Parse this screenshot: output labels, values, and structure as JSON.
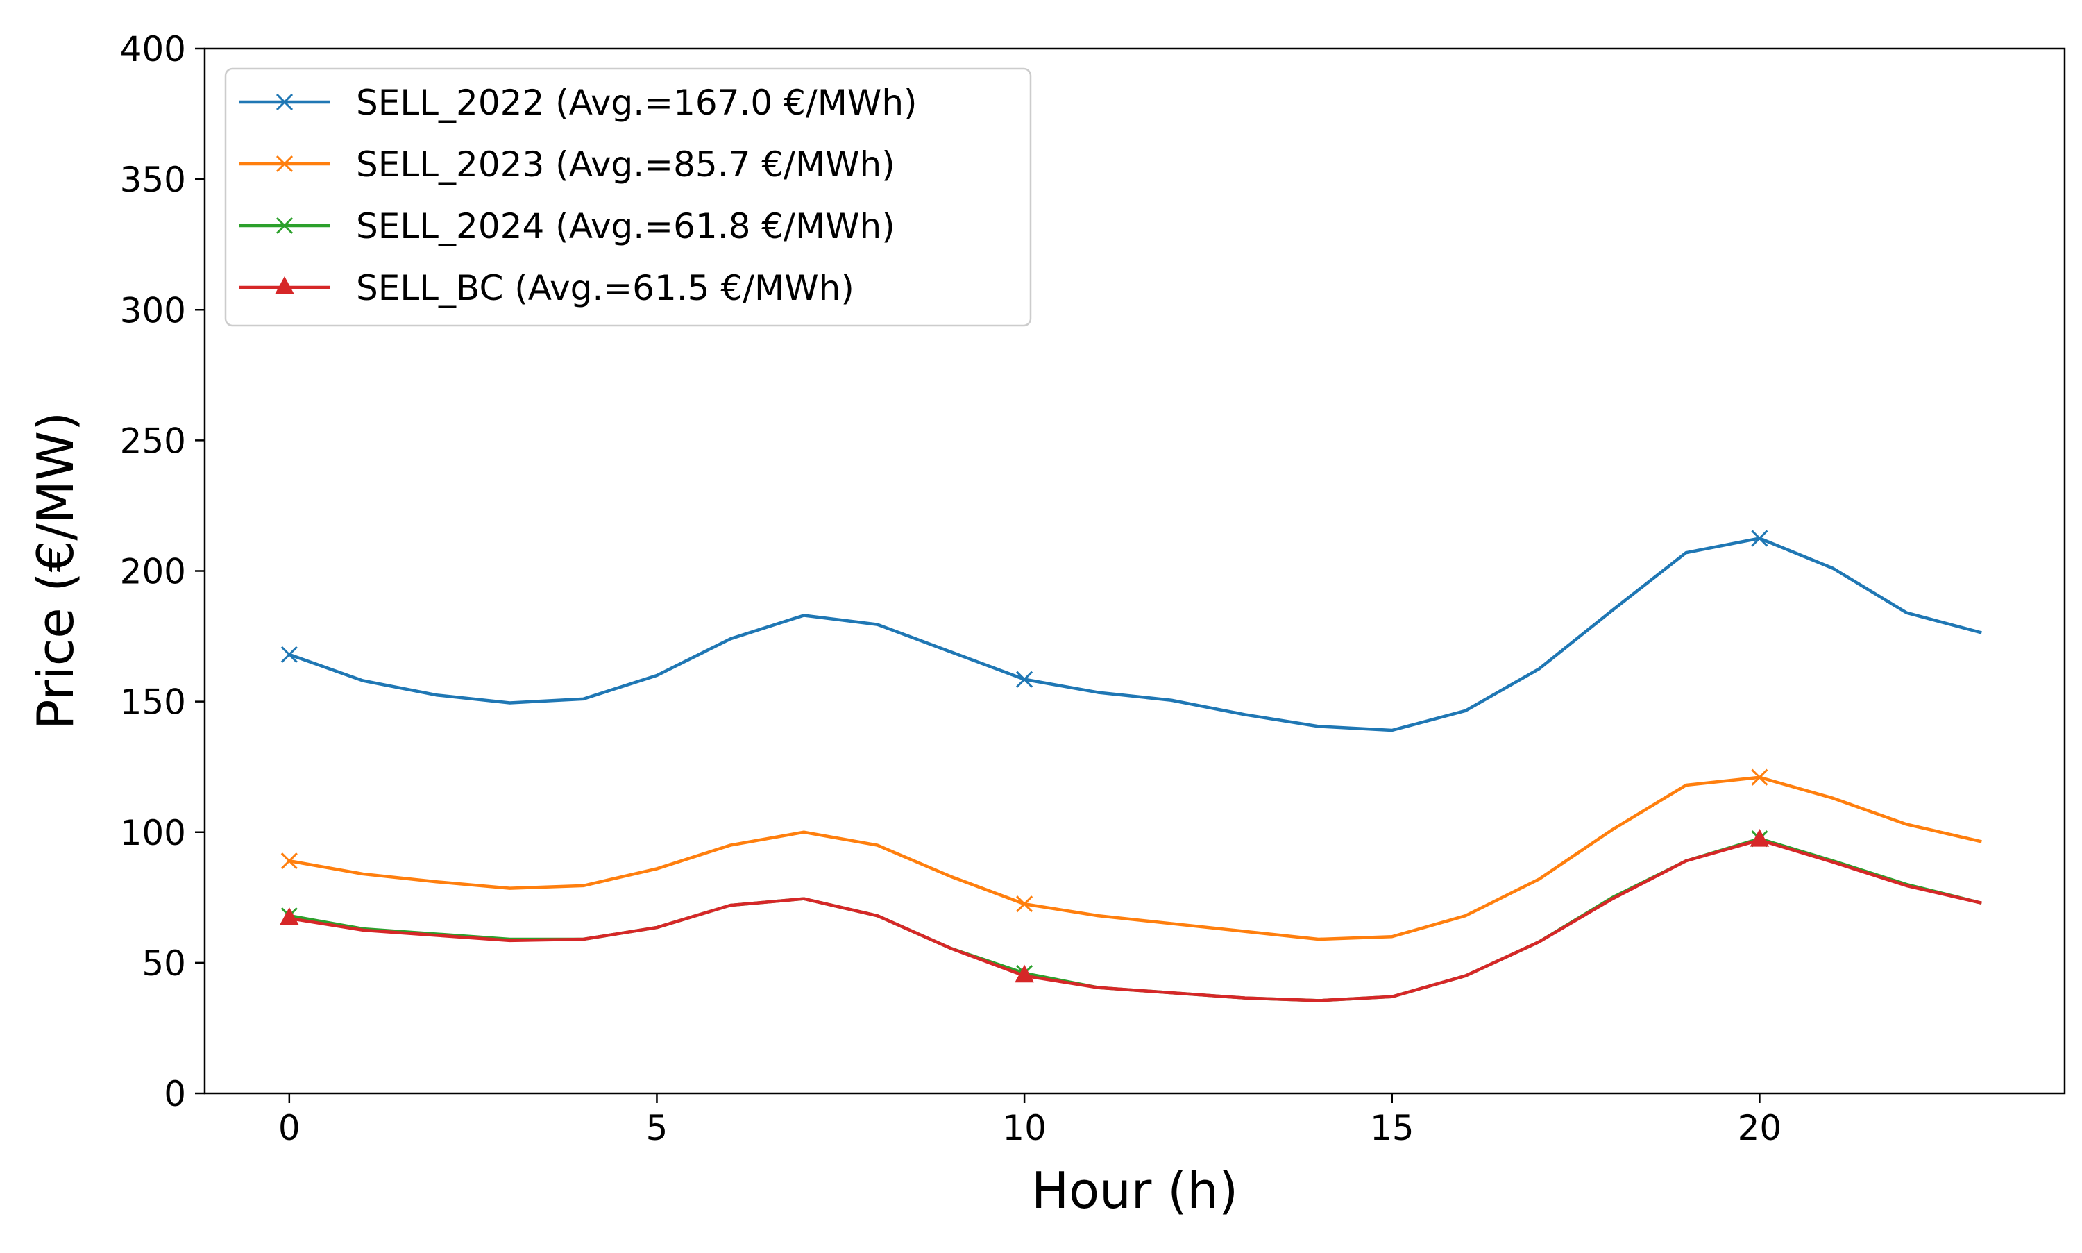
{
  "chart_data": {
    "type": "line",
    "xlabel": "Hour (h)",
    "ylabel": "Price (€/MW)",
    "xlim": [
      -1.15,
      24.15
    ],
    "ylim": [
      0,
      400
    ],
    "xticks": [
      0,
      5,
      10,
      15,
      20
    ],
    "yticks": [
      0,
      50,
      100,
      150,
      200,
      250,
      300,
      350,
      400
    ],
    "grid": false,
    "legend_position": "top-left",
    "x": [
      0,
      1,
      2,
      3,
      4,
      5,
      6,
      7,
      8,
      9,
      10,
      11,
      12,
      13,
      14,
      15,
      16,
      17,
      18,
      19,
      20,
      21,
      22,
      23
    ],
    "series": [
      {
        "name": "SELL_2022 (Avg.=167.0 €/MWh)",
        "color": "#1f77b4",
        "marker": "x",
        "marker_every": 10,
        "values": [
          168,
          158,
          152.5,
          149.5,
          151,
          160,
          174,
          183,
          179.5,
          169,
          158.5,
          153.5,
          150.5,
          145,
          140.5,
          139,
          146.5,
          162.5,
          185,
          207,
          212.5,
          201,
          184,
          176.5
        ]
      },
      {
        "name": "SELL_2023 (Avg.=85.7 €/MWh)",
        "color": "#ff7f0e",
        "marker": "x",
        "marker_every": 10,
        "values": [
          89,
          84,
          81,
          78.5,
          79.5,
          86,
          95,
          100,
          95,
          83,
          72.5,
          68,
          65,
          62,
          59,
          60,
          68,
          82,
          101,
          118,
          121,
          113,
          103,
          96.5
        ]
      },
      {
        "name": "SELL_2024 (Avg.=61.8 €/MWh)",
        "color": "#2ca02c",
        "marker": "x",
        "marker_every": 10,
        "values": [
          68,
          63,
          61,
          59,
          59,
          63.5,
          72,
          74.5,
          68,
          55.5,
          46,
          40.5,
          38.5,
          36.5,
          35.5,
          37,
          45,
          58,
          75,
          89,
          97.5,
          89,
          80,
          73
        ]
      },
      {
        "name": "SELL_BC (Avg.=61.5 €/MWh)",
        "color": "#d62728",
        "marker": "triangle",
        "marker_every": 10,
        "values": [
          67,
          62.5,
          60.5,
          58.5,
          59,
          63.5,
          72,
          74.5,
          68,
          55.5,
          45,
          40.5,
          38.5,
          36.5,
          35.5,
          37,
          45,
          58,
          74.5,
          89,
          97,
          88.5,
          79.5,
          73
        ]
      }
    ]
  }
}
